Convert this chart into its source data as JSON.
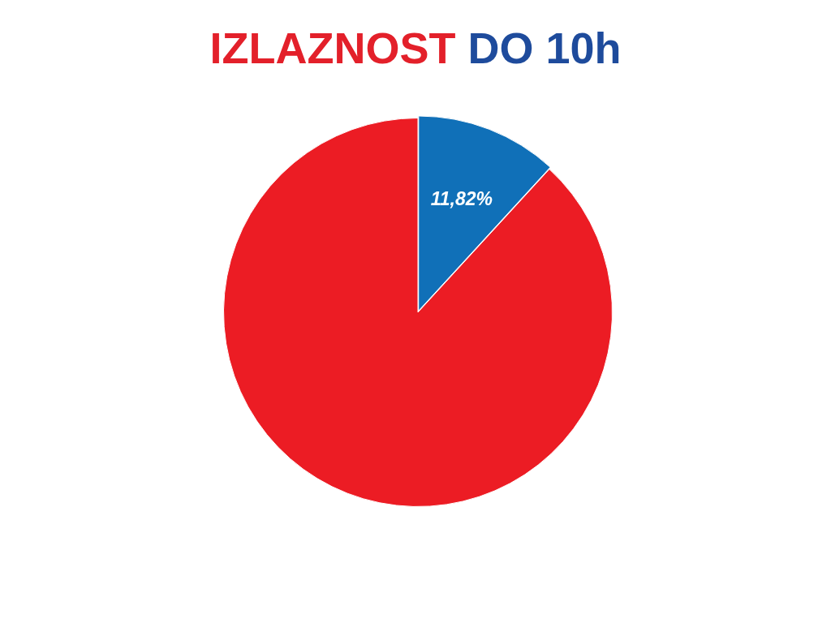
{
  "chart_data": {
    "type": "pie",
    "title": "IZLAZNOST DO 10h",
    "categories": [
      null,
      null
    ],
    "values": [
      11.82,
      88.18
    ],
    "colors": [
      "#1070b8",
      "#ec1c24"
    ],
    "value_labels": [
      "11,82%",
      null
    ]
  }
}
